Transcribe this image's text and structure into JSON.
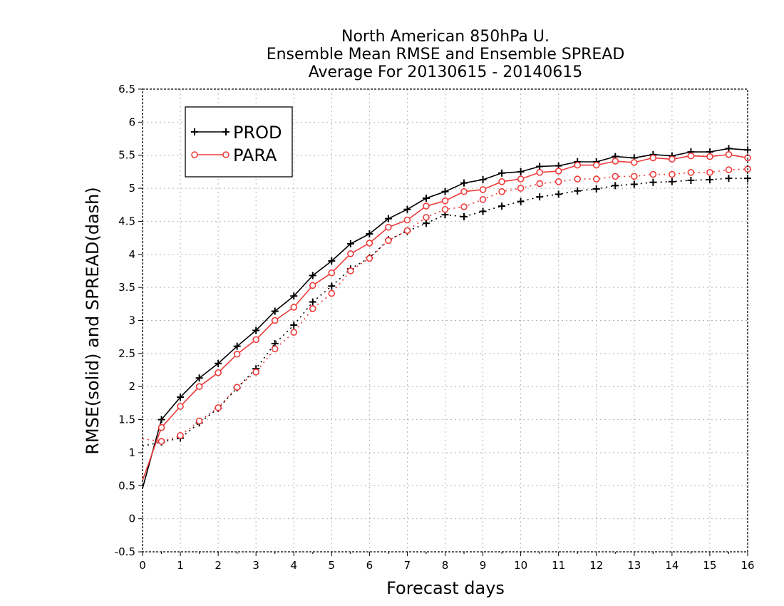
{
  "chart_data": {
    "type": "line",
    "title": [
      "North American 850hPa U.",
      "Ensemble Mean RMSE and Ensemble SPREAD",
      "Average For 20130615 - 20140615"
    ],
    "xlabel": "Forecast days",
    "ylabel": "RMSE(solid) and SPREAD(dash)",
    "xlim": [
      0,
      16
    ],
    "ylim": [
      -0.5,
      6.5
    ],
    "xticks": [
      0,
      1,
      2,
      3,
      4,
      5,
      6,
      7,
      8,
      9,
      10,
      11,
      12,
      13,
      14,
      15,
      16
    ],
    "yticks": [
      -0.5,
      0,
      0.5,
      1,
      1.5,
      2,
      2.5,
      3,
      3.5,
      4,
      4.5,
      5,
      5.5,
      6,
      6.5
    ],
    "ytick_labels": [
      "-0.5",
      "0",
      "0.5",
      "1",
      "1.5",
      "2",
      "2.5",
      "3",
      "3.5",
      "4",
      "4.5",
      "5",
      "5.5",
      "6",
      "6.5"
    ],
    "grid": true,
    "legend_position": "top-left",
    "x": [
      0,
      0.5,
      1,
      1.5,
      2,
      2.5,
      3,
      3.5,
      4,
      4.5,
      5,
      5.5,
      6,
      6.5,
      7,
      7.5,
      8,
      8.5,
      9,
      9.5,
      10,
      10.5,
      11,
      11.5,
      12,
      12.5,
      13,
      13.5,
      14,
      14.5,
      15,
      15.5,
      16
    ],
    "series": [
      {
        "name": "PROD",
        "metric": "RMSE",
        "line_style": "solid",
        "marker": "plus",
        "color": "#000000",
        "values": [
          0.46,
          1.5,
          1.84,
          2.13,
          2.35,
          2.61,
          2.85,
          3.14,
          3.37,
          3.68,
          3.9,
          4.16,
          4.31,
          4.54,
          4.68,
          4.85,
          4.95,
          5.08,
          5.13,
          5.23,
          5.25,
          5.33,
          5.34,
          5.4,
          5.4,
          5.48,
          5.46,
          5.51,
          5.49,
          5.55,
          5.55,
          5.6,
          5.58
        ]
      },
      {
        "name": "PARA",
        "metric": "RMSE",
        "line_style": "solid",
        "marker": "circle",
        "color": "#ee3b3b",
        "values": [
          0.58,
          1.38,
          1.7,
          2.0,
          2.21,
          2.49,
          2.71,
          3.0,
          3.2,
          3.53,
          3.72,
          4.01,
          4.17,
          4.41,
          4.52,
          4.73,
          4.81,
          4.95,
          4.98,
          5.1,
          5.14,
          5.24,
          5.26,
          5.35,
          5.35,
          5.41,
          5.39,
          5.46,
          5.44,
          5.49,
          5.48,
          5.51,
          5.46
        ]
      },
      {
        "name": "PROD",
        "metric": "SPREAD",
        "line_style": "dotted",
        "marker": "plus",
        "color": "#000000",
        "values": [
          1.1,
          1.16,
          1.22,
          1.45,
          1.67,
          1.98,
          2.27,
          2.65,
          2.93,
          3.28,
          3.52,
          3.78,
          3.95,
          4.22,
          4.35,
          4.47,
          4.6,
          4.57,
          4.65,
          4.73,
          4.8,
          4.87,
          4.91,
          4.96,
          4.99,
          5.04,
          5.06,
          5.09,
          5.1,
          5.12,
          5.13,
          5.15,
          5.15
        ]
      },
      {
        "name": "PARA",
        "metric": "SPREAD",
        "line_style": "dotted",
        "marker": "circle",
        "color": "#ee3b3b",
        "values": [
          1.21,
          1.17,
          1.26,
          1.48,
          1.68,
          1.99,
          2.22,
          2.57,
          2.82,
          3.18,
          3.41,
          3.75,
          3.94,
          4.21,
          4.36,
          4.56,
          4.68,
          4.72,
          4.83,
          4.95,
          5.0,
          5.07,
          5.1,
          5.14,
          5.14,
          5.18,
          5.18,
          5.21,
          5.21,
          5.24,
          5.24,
          5.28,
          5.29
        ]
      }
    ],
    "legend": [
      {
        "label": "PROD",
        "marker": "plus",
        "color": "#000000"
      },
      {
        "label": "PARA",
        "marker": "circle",
        "color": "#ee3b3b"
      }
    ]
  }
}
